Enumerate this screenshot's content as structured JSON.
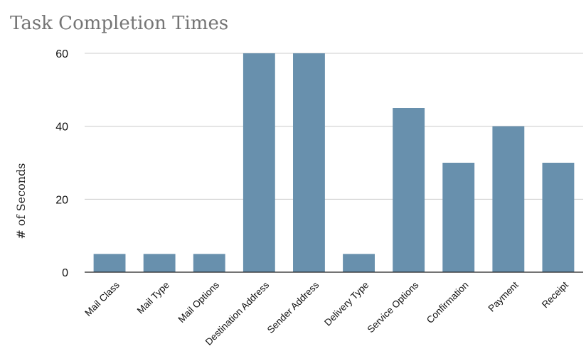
{
  "chart_data": {
    "type": "bar",
    "title": "Task Completion Times",
    "xlabel": "",
    "ylabel": "# of Seconds",
    "categories": [
      "Mail Class",
      "Mail Type",
      "Mail Options",
      "Destination Address",
      "Sender Address",
      "Delivery Type",
      "Service Options",
      "Confirmation",
      "Payment",
      "Receipt"
    ],
    "values": [
      5,
      5,
      5,
      60,
      60,
      5,
      45,
      30,
      40,
      30
    ],
    "ylim": [
      0,
      60
    ],
    "yticks": [
      0,
      20,
      40,
      60
    ],
    "grid": true,
    "bar_color": "#6890ad"
  }
}
